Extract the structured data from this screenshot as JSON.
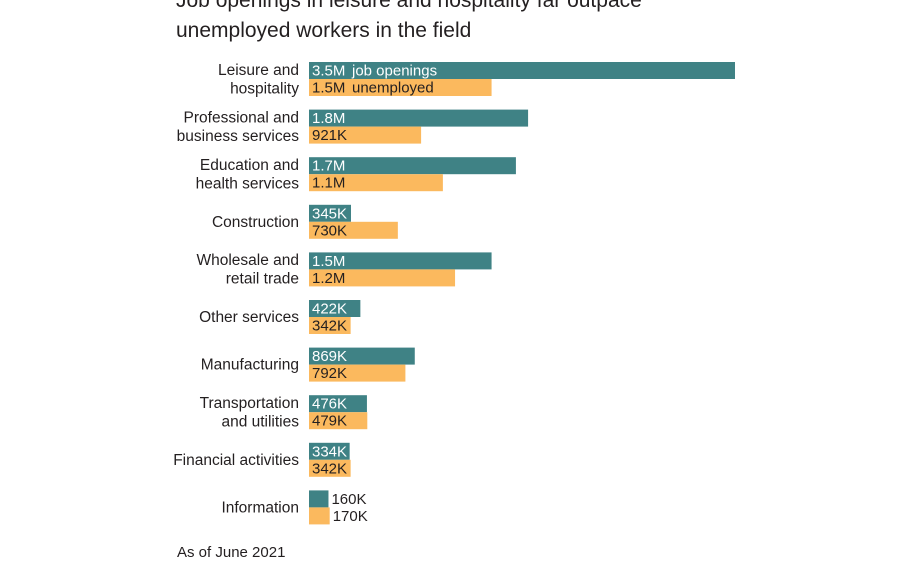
{
  "title": "Job openings in leisure and hospitality far outpace unemployed workers in the field",
  "note": "As of June 2021",
  "colors": {
    "job_openings": "#3f8285",
    "unemployed": "#fbb95e"
  },
  "chart_data": {
    "type": "bar",
    "orientation": "horizontal",
    "categories": [
      [
        "Leisure and",
        "hospitality"
      ],
      [
        "Professional and",
        "business services"
      ],
      [
        "Education and",
        "health services"
      ],
      [
        "Construction"
      ],
      [
        "Wholesale and",
        "retail trade"
      ],
      [
        "Other services"
      ],
      [
        "Manufacturing"
      ],
      [
        "Transportation",
        "and utilities"
      ],
      [
        "Financial activities"
      ],
      [
        "Information"
      ]
    ],
    "series": [
      {
        "name": "job openings",
        "color": "#3f8285",
        "values": [
          3500,
          1800,
          1700,
          345,
          1500,
          422,
          869,
          476,
          334,
          160
        ],
        "labels": [
          "3.5M",
          "1.8M",
          "1.7M",
          "345K",
          "1.5M",
          "422K",
          "869K",
          "476K",
          "334K",
          "160K"
        ]
      },
      {
        "name": "unemployed",
        "color": "#fbb95e",
        "values": [
          1500,
          921,
          1100,
          730,
          1200,
          342,
          792,
          479,
          342,
          170
        ],
        "labels": [
          "1.5M",
          "921K",
          "1.1M",
          "730K",
          "1.2M",
          "342K",
          "792K",
          "479K",
          "342K",
          "170K"
        ]
      }
    ],
    "units": "thousands",
    "xlim": [
      0,
      3500
    ],
    "grid": false,
    "legend": "inline labels on first bar pair"
  }
}
